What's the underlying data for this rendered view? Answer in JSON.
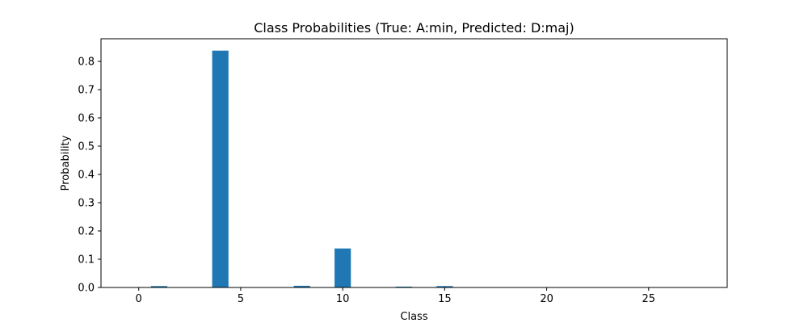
{
  "chart_data": {
    "type": "bar",
    "title": "Class Probabilities (True: A:min, Predicted: D:maj)",
    "xlabel": "Class",
    "ylabel": "Probability",
    "xlim": [
      -1.85,
      28.85
    ],
    "ylim": [
      0,
      0.88
    ],
    "xticks": [
      0,
      5,
      10,
      15,
      20,
      25
    ],
    "yticks": [
      0.0,
      0.1,
      0.2,
      0.3,
      0.4,
      0.5,
      0.6,
      0.7,
      0.8
    ],
    "grid": false,
    "legend": "none",
    "bar_color": "#1f77b4",
    "series": [
      {
        "values": [
          0.0,
          0.005,
          0.0,
          0.0,
          0.838,
          0.0,
          0.0,
          0.0,
          0.006,
          0.0,
          0.138,
          0.0,
          0.0,
          0.003,
          0.0,
          0.005,
          0.0,
          0.0,
          0.0,
          0.0,
          0.0,
          0.0,
          0.0,
          0.0,
          0.0,
          0.0,
          0.0,
          0.0
        ]
      }
    ]
  }
}
